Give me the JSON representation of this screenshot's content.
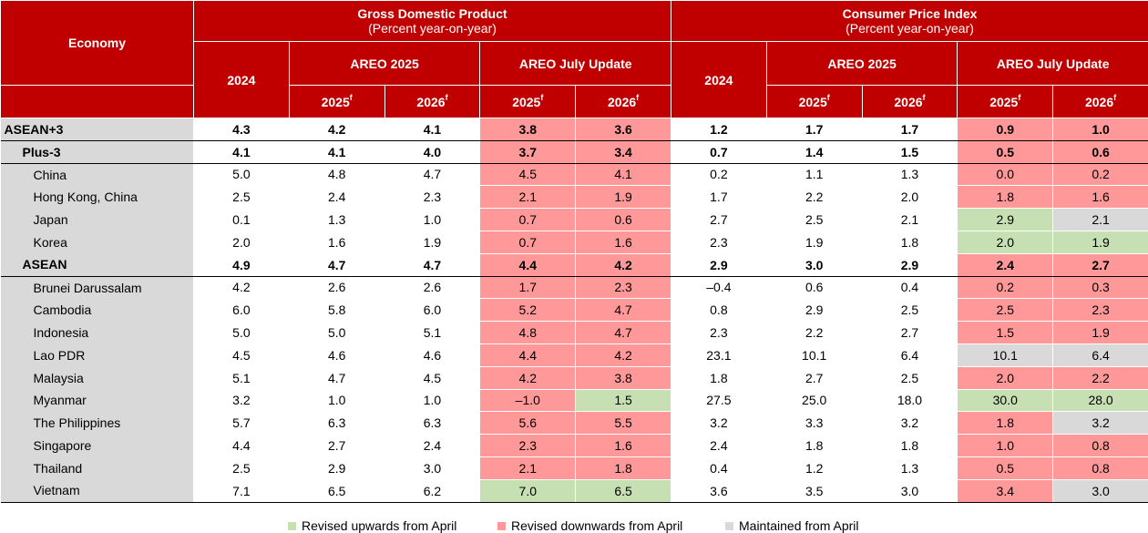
{
  "header": {
    "economy": "Economy",
    "gdp_title": "Gross Domestic Product",
    "gdp_sub": "(Percent year-on-year)",
    "cpi_title": "Consumer Price Index",
    "cpi_sub": "(Percent year-on-year)",
    "y2024": "2024",
    "areo2025": "AREO 2025",
    "july_update": "AREO July Update",
    "y2025f": "2025",
    "y2026f": "2026",
    "f": "f"
  },
  "rows": [
    {
      "name": "ASEAN+3",
      "gdp": [
        "4.3",
        "4.2",
        "4.1",
        "3.8",
        "3.6"
      ],
      "cpi": [
        "1.2",
        "1.7",
        "1.7",
        "0.9",
        "1.0"
      ],
      "gdp_flags": [
        "r",
        "r"
      ],
      "cpi_flags": [
        "r",
        "r"
      ]
    },
    {
      "name": "Plus-3",
      "gdp": [
        "4.1",
        "4.1",
        "4.0",
        "3.7",
        "3.4"
      ],
      "cpi": [
        "0.7",
        "1.4",
        "1.5",
        "0.5",
        "0.6"
      ],
      "gdp_flags": [
        "r",
        "r"
      ],
      "cpi_flags": [
        "r",
        "r"
      ]
    },
    {
      "name": "China",
      "gdp": [
        "5.0",
        "4.8",
        "4.7",
        "4.5",
        "4.1"
      ],
      "cpi": [
        "0.2",
        "1.1",
        "1.3",
        "0.0",
        "0.2"
      ],
      "gdp_flags": [
        "r",
        "r"
      ],
      "cpi_flags": [
        "r",
        "r"
      ]
    },
    {
      "name": "Hong Kong, China",
      "gdp": [
        "2.5",
        "2.4",
        "2.3",
        "2.1",
        "1.9"
      ],
      "cpi": [
        "1.7",
        "2.2",
        "2.0",
        "1.8",
        "1.6"
      ],
      "gdp_flags": [
        "r",
        "r"
      ],
      "cpi_flags": [
        "r",
        "r"
      ]
    },
    {
      "name": "Japan",
      "gdp": [
        "0.1",
        "1.3",
        "1.0",
        "0.7",
        "0.6"
      ],
      "cpi": [
        "2.7",
        "2.5",
        "2.1",
        "2.9",
        "2.1"
      ],
      "gdp_flags": [
        "r",
        "r"
      ],
      "cpi_flags": [
        "g",
        "y"
      ]
    },
    {
      "name": "Korea",
      "gdp": [
        "2.0",
        "1.6",
        "1.9",
        "0.7",
        "1.6"
      ],
      "cpi": [
        "2.3",
        "1.9",
        "1.8",
        "2.0",
        "1.9"
      ],
      "gdp_flags": [
        "r",
        "r"
      ],
      "cpi_flags": [
        "g",
        "g"
      ]
    },
    {
      "name": "ASEAN",
      "gdp": [
        "4.9",
        "4.7",
        "4.7",
        "4.4",
        "4.2"
      ],
      "cpi": [
        "2.9",
        "3.0",
        "2.9",
        "2.4",
        "2.7"
      ],
      "gdp_flags": [
        "r",
        "r"
      ],
      "cpi_flags": [
        "r",
        "r"
      ]
    },
    {
      "name": "Brunei Darussalam",
      "gdp": [
        "4.2",
        "2.6",
        "2.6",
        "1.7",
        "2.3"
      ],
      "cpi": [
        "–0.4",
        "0.6",
        "0.4",
        "0.2",
        "0.3"
      ],
      "gdp_flags": [
        "r",
        "r"
      ],
      "cpi_flags": [
        "r",
        "r"
      ]
    },
    {
      "name": "Cambodia",
      "gdp": [
        "6.0",
        "5.8",
        "6.0",
        "5.2",
        "4.7"
      ],
      "cpi": [
        "0.8",
        "2.9",
        "2.5",
        "2.5",
        "2.3"
      ],
      "gdp_flags": [
        "r",
        "r"
      ],
      "cpi_flags": [
        "r",
        "r"
      ]
    },
    {
      "name": "Indonesia",
      "gdp": [
        "5.0",
        "5.0",
        "5.1",
        "4.8",
        "4.7"
      ],
      "cpi": [
        "2.3",
        "2.2",
        "2.7",
        "1.5",
        "1.9"
      ],
      "gdp_flags": [
        "r",
        "r"
      ],
      "cpi_flags": [
        "r",
        "r"
      ]
    },
    {
      "name": "Lao PDR",
      "gdp": [
        "4.5",
        "4.6",
        "4.6",
        "4.4",
        "4.2"
      ],
      "cpi": [
        "23.1",
        "10.1",
        "6.4",
        "10.1",
        "6.4"
      ],
      "gdp_flags": [
        "r",
        "r"
      ],
      "cpi_flags": [
        "y",
        "y"
      ]
    },
    {
      "name": "Malaysia",
      "gdp": [
        "5.1",
        "4.7",
        "4.5",
        "4.2",
        "3.8"
      ],
      "cpi": [
        "1.8",
        "2.7",
        "2.5",
        "2.0",
        "2.2"
      ],
      "gdp_flags": [
        "r",
        "r"
      ],
      "cpi_flags": [
        "r",
        "r"
      ]
    },
    {
      "name": "Myanmar",
      "gdp": [
        "3.2",
        "1.0",
        "1.0",
        "–1.0",
        "1.5"
      ],
      "cpi": [
        "27.5",
        "25.0",
        "18.0",
        "30.0",
        "28.0"
      ],
      "gdp_flags": [
        "r",
        "g"
      ],
      "cpi_flags": [
        "g",
        "g"
      ]
    },
    {
      "name": "The Philippines",
      "gdp": [
        "5.7",
        "6.3",
        "6.3",
        "5.6",
        "5.5"
      ],
      "cpi": [
        "3.2",
        "3.3",
        "3.2",
        "1.8",
        "3.2"
      ],
      "gdp_flags": [
        "r",
        "r"
      ],
      "cpi_flags": [
        "r",
        "y"
      ]
    },
    {
      "name": "Singapore",
      "gdp": [
        "4.4",
        "2.7",
        "2.4",
        "2.3",
        "1.6"
      ],
      "cpi": [
        "2.4",
        "1.8",
        "1.8",
        "1.0",
        "0.8"
      ],
      "gdp_flags": [
        "r",
        "r"
      ],
      "cpi_flags": [
        "r",
        "r"
      ]
    },
    {
      "name": "Thailand",
      "gdp": [
        "2.5",
        "2.9",
        "3.0",
        "2.1",
        "1.8"
      ],
      "cpi": [
        "0.4",
        "1.2",
        "1.3",
        "0.5",
        "0.8"
      ],
      "gdp_flags": [
        "r",
        "r"
      ],
      "cpi_flags": [
        "r",
        "r"
      ]
    },
    {
      "name": "Vietnam",
      "gdp": [
        "7.1",
        "6.5",
        "6.2",
        "7.0",
        "6.5"
      ],
      "cpi": [
        "3.6",
        "3.5",
        "3.0",
        "3.4",
        "3.0"
      ],
      "gdp_flags": [
        "g",
        "g"
      ],
      "cpi_flags": [
        "r",
        "y"
      ]
    }
  ],
  "legend": {
    "up": "Revised upwards from April",
    "down": "Revised downwards from April",
    "same": "Maintained from April"
  },
  "colors": {
    "header_red": "#c00000",
    "up_green": "#c6e0b4",
    "down_red": "#ff9999",
    "same_gray": "#d9d9d9"
  }
}
